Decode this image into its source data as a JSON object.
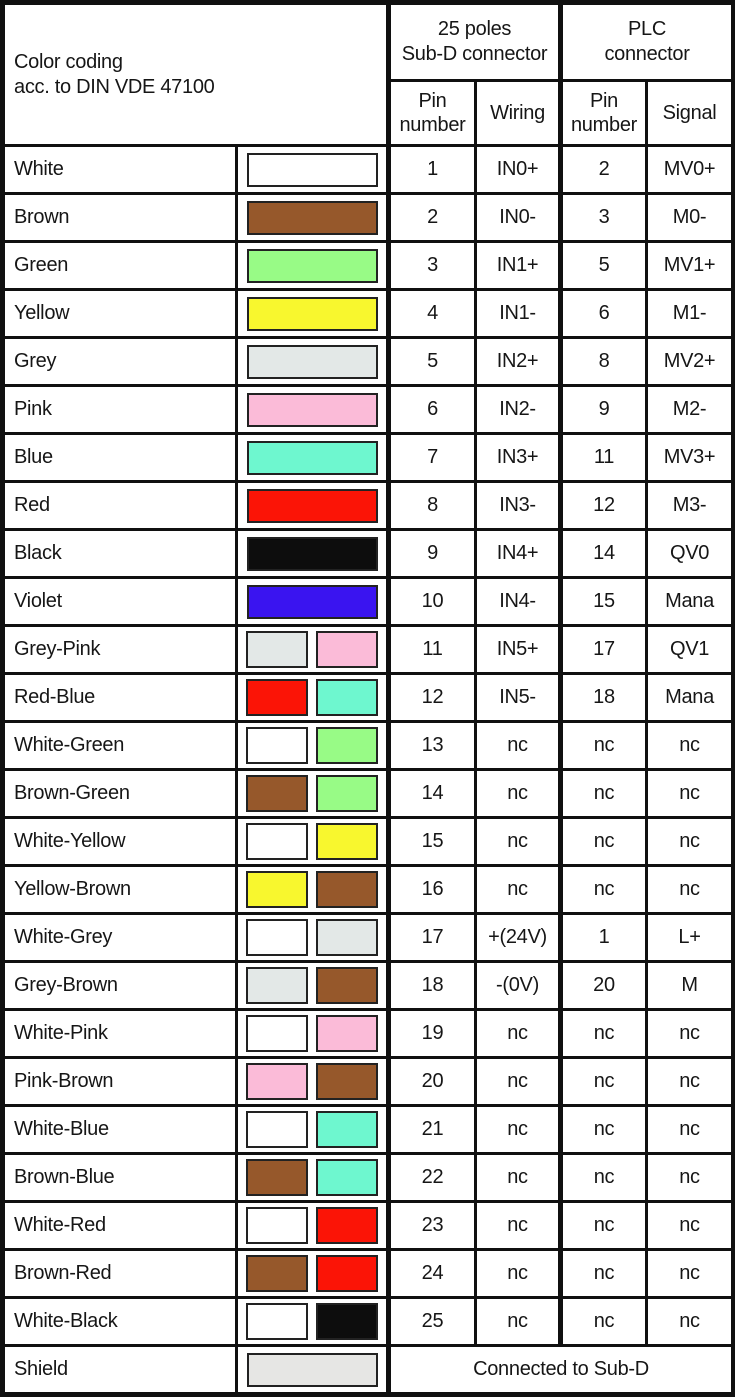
{
  "header": {
    "title_line1": "Color coding",
    "title_line2": "acc. to DIN VDE 47100",
    "group_subd_line1": "25 poles",
    "group_subd_line2": "Sub-D connector",
    "group_plc_line1": "PLC",
    "group_plc_line2": "connector",
    "col_subd_pin_line1": "Pin",
    "col_subd_pin_line2": "number",
    "col_wiring": "Wiring",
    "col_plc_pin_line1": "Pin",
    "col_plc_pin_line2": "number",
    "col_signal": "Signal"
  },
  "colors": {
    "white": "#FFFFFF",
    "brown": "#96582B",
    "green": "#98FB86",
    "yellow": "#F8F72E",
    "grey": "#E3E8E7",
    "pink": "#FBBBD8",
    "blue": "#6EF7CF",
    "red": "#FB1406",
    "black": "#0D0D0D",
    "violet": "#3A14F0",
    "shield": "#E6E6E4"
  },
  "border_color": "#101010",
  "rows": [
    {
      "name": "White",
      "swatches": [
        "white"
      ],
      "subd_pin": "1",
      "wiring": "IN0+",
      "plc_pin": "2",
      "signal": "MV0+"
    },
    {
      "name": "Brown",
      "swatches": [
        "brown"
      ],
      "subd_pin": "2",
      "wiring": "IN0-",
      "plc_pin": "3",
      "signal": "M0-"
    },
    {
      "name": "Green",
      "swatches": [
        "green"
      ],
      "subd_pin": "3",
      "wiring": "IN1+",
      "plc_pin": "5",
      "signal": "MV1+"
    },
    {
      "name": "Yellow",
      "swatches": [
        "yellow"
      ],
      "subd_pin": "4",
      "wiring": "IN1-",
      "plc_pin": "6",
      "signal": "M1-"
    },
    {
      "name": "Grey",
      "swatches": [
        "grey"
      ],
      "subd_pin": "5",
      "wiring": "IN2+",
      "plc_pin": "8",
      "signal": "MV2+"
    },
    {
      "name": "Pink",
      "swatches": [
        "pink"
      ],
      "subd_pin": "6",
      "wiring": "IN2-",
      "plc_pin": "9",
      "signal": "M2-"
    },
    {
      "name": "Blue",
      "swatches": [
        "blue"
      ],
      "subd_pin": "7",
      "wiring": "IN3+",
      "plc_pin": "11",
      "signal": "MV3+"
    },
    {
      "name": "Red",
      "swatches": [
        "red"
      ],
      "subd_pin": "8",
      "wiring": "IN3-",
      "plc_pin": "12",
      "signal": "M3-"
    },
    {
      "name": "Black",
      "swatches": [
        "black"
      ],
      "subd_pin": "9",
      "wiring": "IN4+",
      "plc_pin": "14",
      "signal": "QV0"
    },
    {
      "name": "Violet",
      "swatches": [
        "violet"
      ],
      "subd_pin": "10",
      "wiring": "IN4-",
      "plc_pin": "15",
      "signal": "Mana"
    },
    {
      "name": "Grey-Pink",
      "swatches": [
        "grey",
        "pink"
      ],
      "subd_pin": "11",
      "wiring": "IN5+",
      "plc_pin": "17",
      "signal": "QV1"
    },
    {
      "name": "Red-Blue",
      "swatches": [
        "red",
        "blue"
      ],
      "subd_pin": "12",
      "wiring": "IN5-",
      "plc_pin": "18",
      "signal": "Mana"
    },
    {
      "name": "White-Green",
      "swatches": [
        "white",
        "green"
      ],
      "subd_pin": "13",
      "wiring": "nc",
      "plc_pin": "nc",
      "signal": "nc"
    },
    {
      "name": "Brown-Green",
      "swatches": [
        "brown",
        "green"
      ],
      "subd_pin": "14",
      "wiring": "nc",
      "plc_pin": "nc",
      "signal": "nc"
    },
    {
      "name": "White-Yellow",
      "swatches": [
        "white",
        "yellow"
      ],
      "subd_pin": "15",
      "wiring": "nc",
      "plc_pin": "nc",
      "signal": "nc"
    },
    {
      "name": "Yellow-Brown",
      "swatches": [
        "yellow",
        "brown"
      ],
      "subd_pin": "16",
      "wiring": "nc",
      "plc_pin": "nc",
      "signal": "nc"
    },
    {
      "name": "White-Grey",
      "swatches": [
        "white",
        "grey"
      ],
      "subd_pin": "17",
      "wiring": "+(24V)",
      "plc_pin": "1",
      "signal": "L+"
    },
    {
      "name": "Grey-Brown",
      "swatches": [
        "grey",
        "brown"
      ],
      "subd_pin": "18",
      "wiring": "-(0V)",
      "plc_pin": "20",
      "signal": "M"
    },
    {
      "name": "White-Pink",
      "swatches": [
        "white",
        "pink"
      ],
      "subd_pin": "19",
      "wiring": "nc",
      "plc_pin": "nc",
      "signal": "nc"
    },
    {
      "name": "Pink-Brown",
      "swatches": [
        "pink",
        "brown"
      ],
      "subd_pin": "20",
      "wiring": "nc",
      "plc_pin": "nc",
      "signal": "nc"
    },
    {
      "name": "White-Blue",
      "swatches": [
        "white",
        "blue"
      ],
      "subd_pin": "21",
      "wiring": "nc",
      "plc_pin": "nc",
      "signal": "nc"
    },
    {
      "name": "Brown-Blue",
      "swatches": [
        "brown",
        "blue"
      ],
      "subd_pin": "22",
      "wiring": "nc",
      "plc_pin": "nc",
      "signal": "nc"
    },
    {
      "name": "White-Red",
      "swatches": [
        "white",
        "red"
      ],
      "subd_pin": "23",
      "wiring": "nc",
      "plc_pin": "nc",
      "signal": "nc"
    },
    {
      "name": "Brown-Red",
      "swatches": [
        "brown",
        "red"
      ],
      "subd_pin": "24",
      "wiring": "nc",
      "plc_pin": "nc",
      "signal": "nc"
    },
    {
      "name": "White-Black",
      "swatches": [
        "white",
        "black"
      ],
      "subd_pin": "25",
      "wiring": "nc",
      "plc_pin": "nc",
      "signal": "nc"
    },
    {
      "name": "Shield",
      "swatches": [
        "shield"
      ],
      "note": "Connected to Sub-D"
    }
  ]
}
